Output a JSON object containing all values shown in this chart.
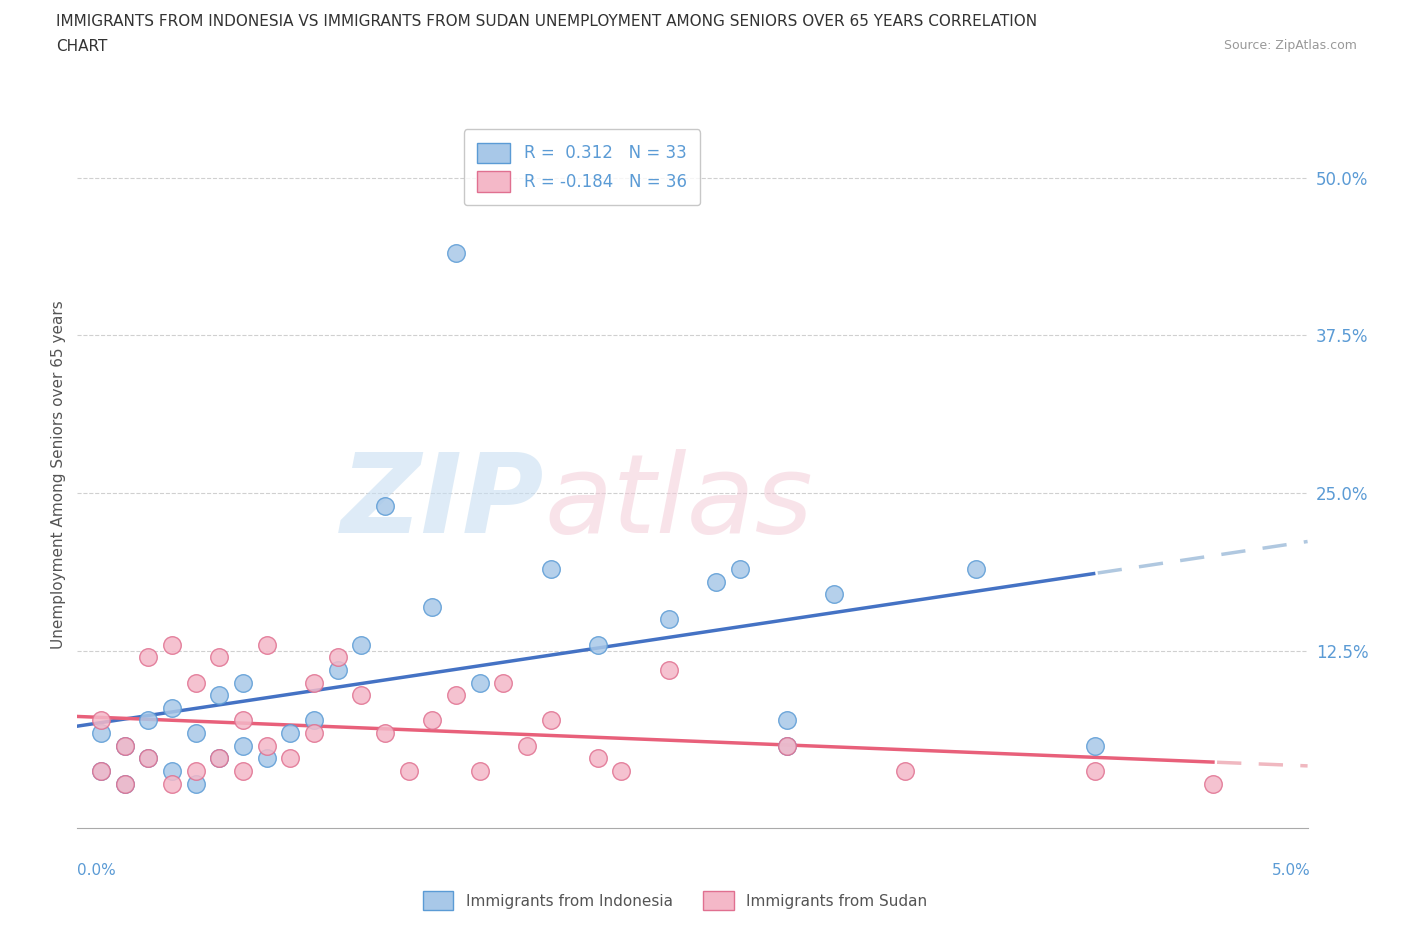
{
  "title_line1": "IMMIGRANTS FROM INDONESIA VS IMMIGRANTS FROM SUDAN UNEMPLOYMENT AMONG SENIORS OVER 65 YEARS CORRELATION",
  "title_line2": "CHART",
  "source": "Source: ZipAtlas.com",
  "ylabel": "Unemployment Among Seniors over 65 years",
  "y_ticks": [
    0.0,
    0.125,
    0.25,
    0.375,
    0.5
  ],
  "y_tick_labels": [
    "",
    "12.5%",
    "25.0%",
    "37.5%",
    "50.0%"
  ],
  "x_range": [
    0.0,
    0.052
  ],
  "y_range": [
    -0.015,
    0.545
  ],
  "R_indonesia": 0.312,
  "N_indonesia": 33,
  "R_sudan": -0.184,
  "N_sudan": 36,
  "color_indonesia": "#a8c8e8",
  "color_indonesia_edge": "#5b9bd5",
  "color_sudan": "#f4b8c8",
  "color_sudan_edge": "#e07090",
  "color_line_indonesia": "#4472c4",
  "color_line_sudan": "#e8607a",
  "color_line_dashed_indonesia": "#b0c8e0",
  "color_line_dashed_sudan": "#f0b8c0",
  "indonesia_x": [
    0.001,
    0.001,
    0.002,
    0.002,
    0.003,
    0.003,
    0.004,
    0.004,
    0.005,
    0.005,
    0.006,
    0.006,
    0.007,
    0.007,
    0.008,
    0.009,
    0.01,
    0.011,
    0.012,
    0.013,
    0.015,
    0.016,
    0.017,
    0.02,
    0.022,
    0.025,
    0.027,
    0.028,
    0.03,
    0.03,
    0.032,
    0.038,
    0.043
  ],
  "indonesia_y": [
    0.03,
    0.06,
    0.02,
    0.05,
    0.04,
    0.07,
    0.03,
    0.08,
    0.02,
    0.06,
    0.04,
    0.09,
    0.05,
    0.1,
    0.04,
    0.06,
    0.07,
    0.11,
    0.13,
    0.24,
    0.16,
    0.44,
    0.1,
    0.19,
    0.13,
    0.15,
    0.18,
    0.19,
    0.05,
    0.07,
    0.17,
    0.19,
    0.05
  ],
  "sudan_x": [
    0.001,
    0.001,
    0.002,
    0.002,
    0.003,
    0.003,
    0.004,
    0.004,
    0.005,
    0.005,
    0.006,
    0.006,
    0.007,
    0.007,
    0.008,
    0.008,
    0.009,
    0.01,
    0.01,
    0.011,
    0.012,
    0.013,
    0.014,
    0.015,
    0.016,
    0.017,
    0.018,
    0.019,
    0.02,
    0.022,
    0.023,
    0.025,
    0.03,
    0.035,
    0.043,
    0.048
  ],
  "sudan_y": [
    0.03,
    0.07,
    0.02,
    0.05,
    0.04,
    0.12,
    0.02,
    0.13,
    0.03,
    0.1,
    0.04,
    0.12,
    0.03,
    0.07,
    0.05,
    0.13,
    0.04,
    0.06,
    0.1,
    0.12,
    0.09,
    0.06,
    0.03,
    0.07,
    0.09,
    0.03,
    0.1,
    0.05,
    0.07,
    0.04,
    0.03,
    0.11,
    0.05,
    0.03,
    0.03,
    0.02
  ]
}
